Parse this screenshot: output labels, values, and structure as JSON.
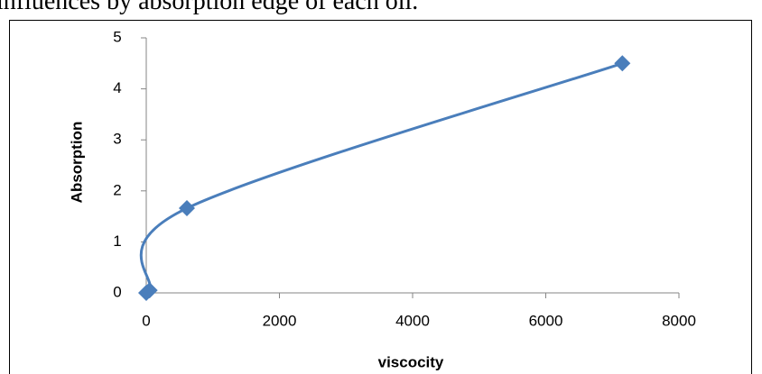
{
  "caption_text": "influences by absorption edge of each oil.",
  "chart_data": {
    "type": "scatter",
    "x": [
      0,
      50,
      610,
      7150
    ],
    "series": [
      {
        "color": "#4a7ebb",
        "values": [
          0,
          0.05,
          1.66,
          4.5
        ]
      }
    ],
    "xlabel": "viscocity",
    "ylabel": "Absorption",
    "xlim": [
      0,
      8000
    ],
    "xticks": [
      0,
      2000,
      4000,
      6000,
      8000
    ],
    "ylim": [
      0,
      5
    ],
    "yticks": [
      0,
      1,
      2,
      3,
      4,
      5
    ],
    "smooth": true
  }
}
